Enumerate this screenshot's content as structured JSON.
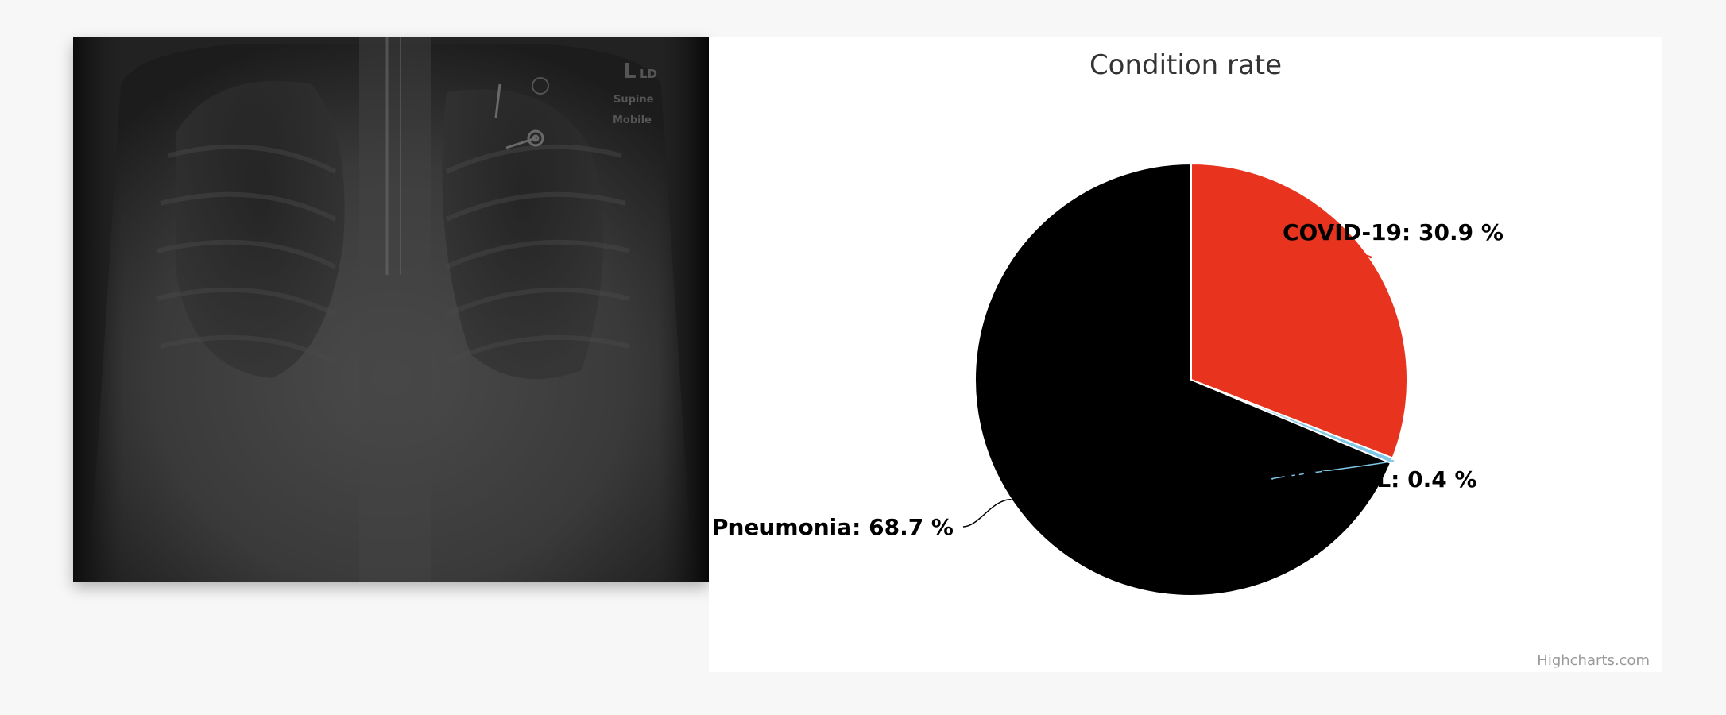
{
  "xray": {
    "marker": "L",
    "marker_sub": "LD",
    "position_text": "Supine",
    "mode_text": "Mobile"
  },
  "chart": {
    "credits": "Highcharts.com"
  },
  "chart_data": {
    "type": "pie",
    "title": "Condition rate",
    "series": [
      {
        "data": [
          {
            "name": "COVID-19",
            "value": 30.9,
            "label": "COVID-19: 30.9 %",
            "color": "#e8341f"
          },
          {
            "name": "NORMAL",
            "value": 0.4,
            "label": "NORMAL: 0.4 %",
            "color": "#7fc7e8"
          },
          {
            "name": "Pneumonia",
            "value": 68.7,
            "label": "Pneumonia: 68.7 %",
            "color": "#000000"
          }
        ]
      }
    ]
  }
}
